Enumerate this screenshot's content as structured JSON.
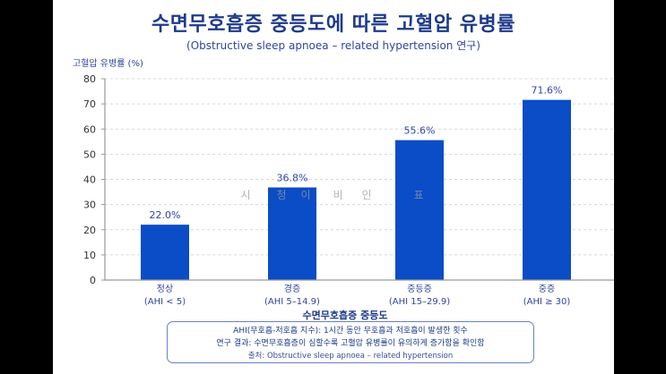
{
  "chart_data": {
    "type": "bar",
    "title": "수면무호흡증 중등도에 따른 고혈압 유병률",
    "subtitle": "(Obstructive sleep apnoea – related hypertension 연구)",
    "ylabel": "고혈압 유병률 (%)",
    "xlabel": "수면무호흡증 중등도",
    "categories": [
      {
        "name": "정상",
        "range": "(AHI < 5)"
      },
      {
        "name": "경증",
        "range": "(AHI 5–14.9)"
      },
      {
        "name": "중등증",
        "range": "(AHI 15–29.9)"
      },
      {
        "name": "중증",
        "range": "(AHI ≥ 30)"
      }
    ],
    "values": [
      22.0,
      36.8,
      55.6,
      71.6
    ],
    "value_labels": [
      "22.0%",
      "36.8%",
      "55.6%",
      "71.6%"
    ],
    "ylim": [
      0,
      80
    ],
    "yticks": [
      0,
      10,
      20,
      30,
      40,
      50,
      60,
      70,
      80
    ],
    "grid": true,
    "legend": "none",
    "bar_color": "#0b4cc7"
  },
  "watermark": [
    "시",
    "청",
    "이",
    "비",
    "인",
    "표"
  ],
  "notes": {
    "line1": "AHI(무호흡-저호흡 지수): 1시간 동안 무호흡과 저호흡이 발생한 횟수",
    "line2": "연구 결과: 수면무호흡증이 심할수록 고혈압 유병률이 유의하게 증가함을 확인함",
    "source": "출처: Obstructive sleep apnoea – related hypertension"
  }
}
